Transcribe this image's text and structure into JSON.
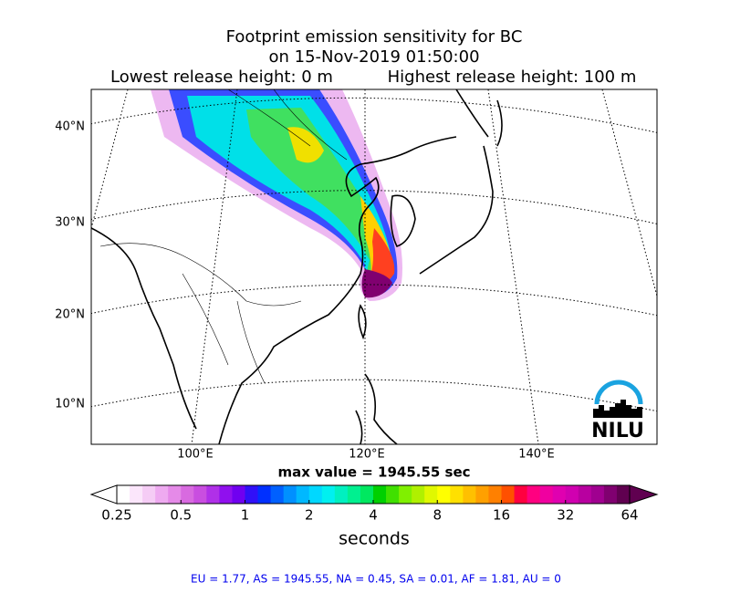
{
  "title": [
    "Footprint emission sensitivity for BC",
    "on 15-Nov-2019 01:50:00"
  ],
  "subtitle_left": "Lowest release height: 0 m",
  "subtitle_right": "Highest release height: 100 m",
  "map": {
    "lat_labels": [
      "40°N",
      "30°N",
      "20°N",
      "10°N"
    ],
    "lon_labels": [
      "100°E",
      "120°E",
      "140°E"
    ],
    "logo": "NILU"
  },
  "max_value_label": "max value = 1945.55 sec",
  "colorbar": {
    "scale": "log",
    "lim": [
      0.25,
      64
    ],
    "ticks": [
      0.25,
      0.5,
      1,
      2,
      4,
      8,
      16,
      32,
      64
    ],
    "label": "seconds",
    "colors": [
      "#ffffff",
      "#fbe6fb",
      "#f5ccf5",
      "#eeaaf0",
      "#e58ae8",
      "#d86ae0",
      "#c94ee0",
      "#b030e8",
      "#9010ee",
      "#7000f0",
      "#3010f8",
      "#0030ff",
      "#0060ff",
      "#0090ff",
      "#00b8ff",
      "#00d8ff",
      "#00f0f0",
      "#00f0c0",
      "#00f090",
      "#00e860",
      "#00d000",
      "#40e000",
      "#80f000",
      "#b0f000",
      "#e0f800",
      "#ffff00",
      "#ffe000",
      "#ffc000",
      "#ffa000",
      "#ff8000",
      "#ff5000",
      "#ff0040",
      "#ff0080",
      "#f000a0",
      "#e000b0",
      "#d000b0",
      "#b800a0",
      "#a00090",
      "#800070",
      "#600050"
    ]
  },
  "footer": "EU = 1.77,  AS = 1945.55,  NA = 0.45,  SA = 0.01,  AF = 1.81,  AU = 0"
}
